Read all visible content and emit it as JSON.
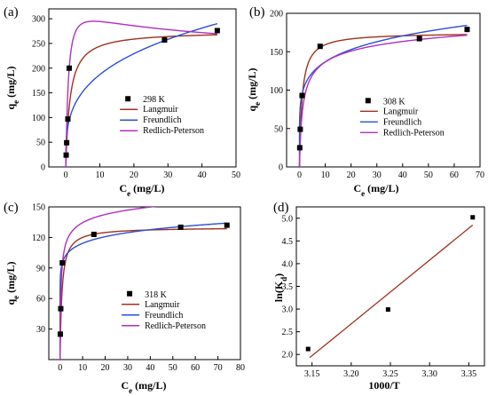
{
  "chart_data": [
    {
      "type": "scatter",
      "panel_label": "(a)",
      "xlabel": "Ce (mg/L)",
      "ylabel": "qe (mg/L)",
      "xlim": [
        -5,
        50
      ],
      "ylim": [
        0,
        320
      ],
      "xticks": [
        0,
        10,
        20,
        30,
        40,
        50
      ],
      "yticks": [
        0,
        50,
        100,
        150,
        200,
        250,
        300
      ],
      "points_name": "298 K",
      "x": [
        0.1,
        0.25,
        0.6,
        1.0,
        29.0,
        44.5
      ],
      "y": [
        24,
        49,
        97,
        200,
        257,
        276
      ],
      "legend": "lower-right",
      "models": {
        "langmuir": {
          "qm": 275,
          "KL": 0.8
        },
        "freundlich": {
          "KF": 95,
          "n": 3.4
        },
        "redlich_peterson": {
          "K": 400,
          "a": 1.0,
          "beta": 1.1
        }
      }
    },
    {
      "type": "scatter",
      "panel_label": "(b)",
      "xlabel": "Ce (mg/L)",
      "ylabel": "qe (mg/L)",
      "xlim": [
        -5,
        70
      ],
      "ylim": [
        0,
        200
      ],
      "xticks": [
        0,
        10,
        20,
        30,
        40,
        50,
        60,
        70
      ],
      "yticks": [
        0,
        50,
        100,
        150,
        200
      ],
      "points_name": "308 K",
      "x": [
        0.1,
        0.3,
        1.0,
        8.0,
        46.5,
        65.0
      ],
      "y": [
        25,
        49,
        93,
        157,
        167,
        179
      ],
      "legend": "right",
      "models": {
        "langmuir": {
          "qm": 175,
          "KL": 1.0
        },
        "freundlich": {
          "KF": 95,
          "n": 6.3
        },
        "redlich_peterson": {
          "K": 150,
          "a": 1.2,
          "beta": 0.92
        }
      }
    },
    {
      "type": "scatter",
      "panel_label": "(c)",
      "xlabel": "Ce (mg/L)",
      "ylabel": "qe (mg/L)",
      "xlim": [
        -5,
        80
      ],
      "ylim": [
        0,
        150
      ],
      "xticks": [
        0,
        10,
        20,
        30,
        40,
        50,
        60,
        70,
        80
      ],
      "yticks": [
        30,
        60,
        90,
        120,
        150
      ],
      "points_name": "318 K",
      "x": [
        0.1,
        0.3,
        1.0,
        15.0,
        53.5,
        74.0
      ],
      "y": [
        25,
        50,
        95,
        123,
        130,
        132
      ],
      "legend": "lower-right",
      "models": {
        "langmuir": {
          "qm": 130,
          "KL": 1.2
        },
        "freundlich": {
          "KF": 95,
          "n": 12.5
        },
        "redlich_peterson": {
          "K": 400,
          "a": 3.3,
          "beta": 0.94
        }
      }
    },
    {
      "type": "scatter",
      "panel_label": "(d)",
      "xlabel": "1000/T",
      "ylabel": "ln(Kd)",
      "xlim": [
        3.13,
        3.37
      ],
      "ylim": [
        1.75,
        5.25
      ],
      "xticks": [
        3.15,
        3.2,
        3.25,
        3.3,
        3.35
      ],
      "xtick_labels": [
        "3.15",
        "3.20",
        "3.25",
        "3.30",
        "3.35"
      ],
      "yticks": [
        2.0,
        2.5,
        3.0,
        3.5,
        4.0,
        4.5,
        5.0
      ],
      "ytick_labels": [
        "2.0",
        "2.5",
        "3.0",
        "3.5",
        "4.0",
        "4.5",
        "5.0"
      ],
      "x": [
        3.145,
        3.247,
        3.355
      ],
      "y": [
        2.12,
        2.99,
        5.02
      ],
      "fit_line": {
        "x": [
          3.147,
          3.355
        ],
        "y": [
          1.93,
          4.85
        ]
      }
    }
  ],
  "legend": {
    "langmuir": "Langmuir",
    "freundlich": "Freundlich",
    "redlich_peterson": "Redlich-Peterson"
  },
  "colors": {
    "langmuir": "#a0321e",
    "freundlich": "#2a4fd8",
    "redlich_peterson": "#b02ec0",
    "points": "#000000",
    "fit_line": "#a0321e"
  }
}
